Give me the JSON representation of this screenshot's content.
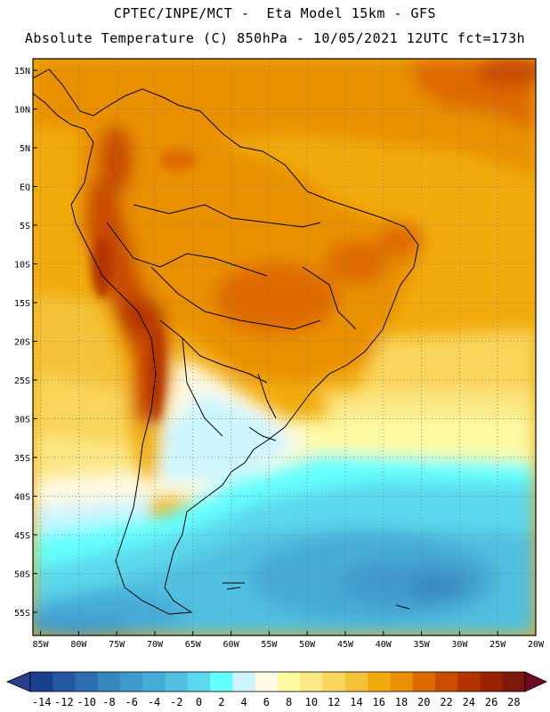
{
  "header": {
    "line1": "CPTEC/INPE/MCT -  Eta Model 15km - GFS",
    "line2": "Absolute Temperature (C) 850hPa - 10/05/2021 12UTC fct=173h"
  },
  "map": {
    "lat_labels": [
      "15N",
      "10N",
      "5N",
      "EQ",
      "5S",
      "10S",
      "15S",
      "20S",
      "25S",
      "30S",
      "35S",
      "40S",
      "45S",
      "50S",
      "55S"
    ],
    "lon_labels": [
      "85W",
      "80W",
      "75W",
      "70W",
      "65W",
      "60W",
      "55W",
      "50W",
      "45W",
      "40W",
      "35W",
      "30W",
      "25W",
      "20W"
    ],
    "lat_values": [
      15,
      10,
      5,
      0,
      -5,
      -10,
      -15,
      -20,
      -25,
      -30,
      -35,
      -40,
      -45,
      -50,
      -55
    ],
    "lon_values": [
      -85,
      -80,
      -75,
      -70,
      -65,
      -60,
      -55,
      -50,
      -45,
      -40,
      -35,
      -30,
      -25,
      -20
    ],
    "extent": {
      "lon_min": -86,
      "lon_max": -20,
      "lat_min": -58,
      "lat_max": 16.5
    }
  },
  "colorbar": {
    "labels": [
      "-14",
      "-12",
      "-10",
      "-8",
      "-6",
      "-4",
      "-2",
      "0",
      "2",
      "4",
      "6",
      "8",
      "10",
      "12",
      "14",
      "16",
      "18",
      "20",
      "22",
      "24",
      "26",
      "28"
    ],
    "colors": [
      "#1a3f8f",
      "#25589f",
      "#2e6eae",
      "#3787bf",
      "#3f9bcc",
      "#46acd8",
      "#51c0e0",
      "#5cd8ec",
      "#66ffff",
      "#ccf5ff",
      "#fffae3",
      "#fdfaa3",
      "#fce785",
      "#fad55c",
      "#f5c33a",
      "#f1ab0c",
      "#e99006",
      "#de6b00",
      "#c94c00",
      "#b33400",
      "#992200",
      "#7b1a0a"
    ],
    "left_cap_color": "#2a3e8c",
    "right_cap_color": "#6e0b24"
  }
}
